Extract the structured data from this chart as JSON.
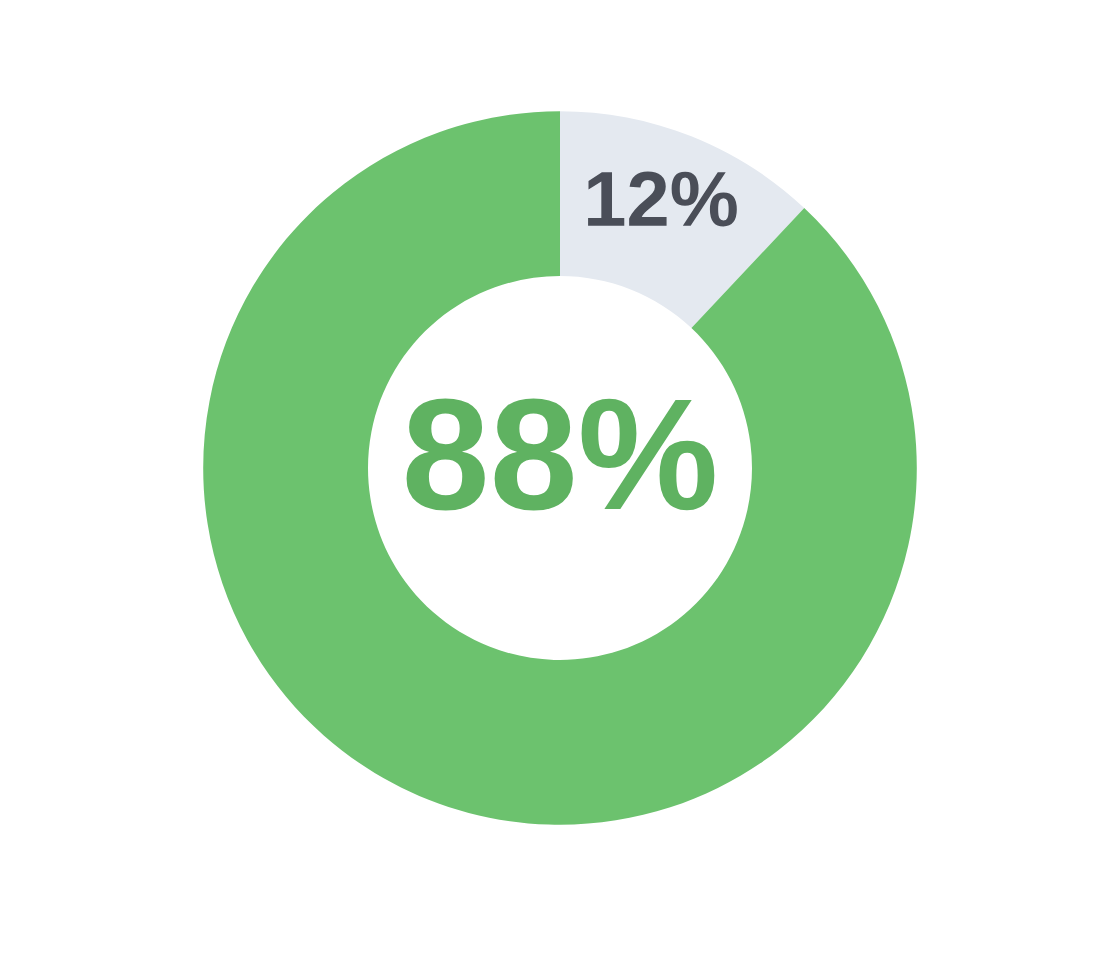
{
  "chart_data": {
    "type": "donut",
    "categories": [
      null,
      null
    ],
    "values": [
      12,
      88
    ],
    "colors": [
      "#e4e9f0",
      "#6cc26e"
    ],
    "value_labels": [
      "12%",
      "88%"
    ]
  }
}
